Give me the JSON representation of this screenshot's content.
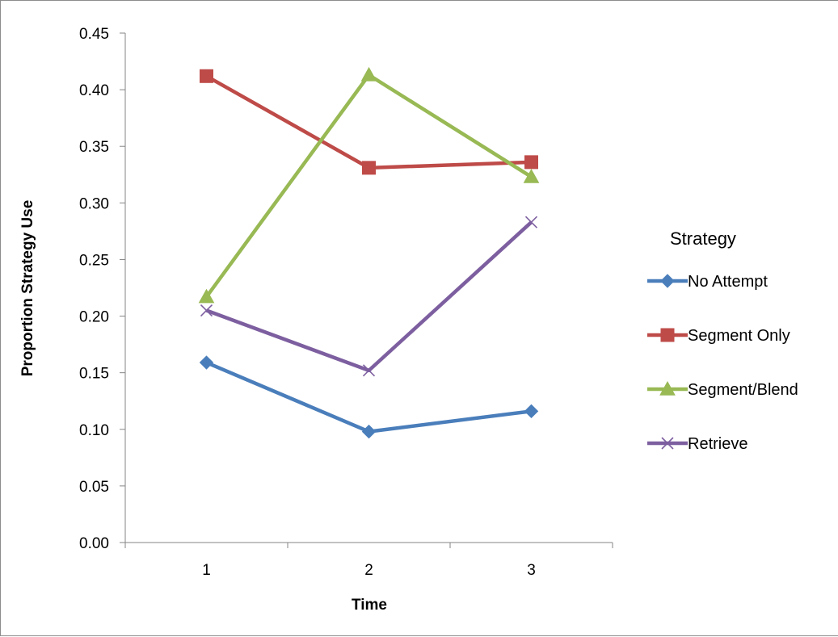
{
  "chart_data": {
    "type": "line",
    "title": "",
    "xlabel": "Time",
    "ylabel": "Proportion Strategy Use",
    "categories": [
      "1",
      "2",
      "3"
    ],
    "ylim": [
      0,
      0.45
    ],
    "yticks": [
      "0.00",
      "0.05",
      "0.10",
      "0.15",
      "0.20",
      "0.25",
      "0.30",
      "0.35",
      "0.40",
      "0.45"
    ],
    "grid": false,
    "legend": {
      "title": "Strategy",
      "placement": "right"
    },
    "series": [
      {
        "name": "No Attempt",
        "values": [
          0.159,
          0.098,
          0.116
        ],
        "color": "#4a7ebb",
        "marker": "diamond"
      },
      {
        "name": "Segment Only",
        "values": [
          0.412,
          0.331,
          0.336
        ],
        "color": "#be4b48",
        "marker": "square"
      },
      {
        "name": "Segment/Blend",
        "values": [
          0.217,
          0.413,
          0.323
        ],
        "color": "#98b954",
        "marker": "triangle"
      },
      {
        "name": "Retrieve",
        "values": [
          0.205,
          0.152,
          0.283
        ],
        "color": "#7d5fa0",
        "marker": "x"
      }
    ]
  }
}
